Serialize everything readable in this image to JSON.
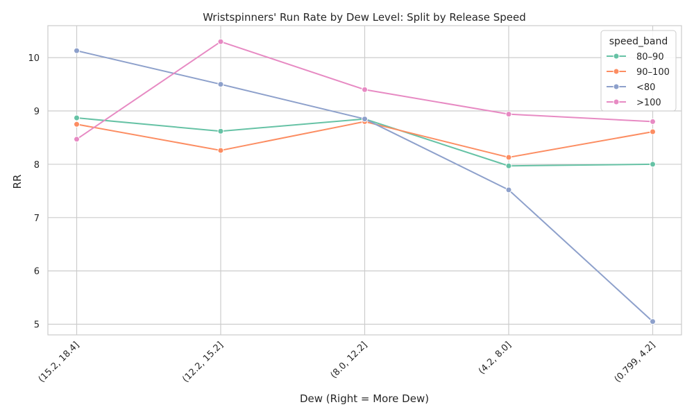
{
  "chart_data": {
    "type": "line",
    "title": "Wristspinners' Run Rate by Dew Level: Split by Release Speed",
    "xlabel": "Dew (Right = More Dew)",
    "ylabel": "RR",
    "categories": [
      "(15.2, 18.4]",
      "(12.2, 15.2]",
      "(8.0, 12.2]",
      "(4.2, 8.0]",
      "(0.799, 4.2]"
    ],
    "ylim": [
      4.8,
      10.6
    ],
    "yticks": [
      5,
      6,
      7,
      8,
      9,
      10
    ],
    "grid": true,
    "legend": {
      "title": "speed_band",
      "placement": "top-right"
    },
    "series": [
      {
        "name": "80–90",
        "color": "#66c2a5",
        "values": [
          8.87,
          8.62,
          8.85,
          7.97,
          8.0
        ]
      },
      {
        "name": "90–100",
        "color": "#fc8d62",
        "values": [
          8.75,
          8.26,
          8.8,
          8.13,
          8.61
        ]
      },
      {
        "name": "<80",
        "color": "#8da0cb",
        "values": [
          10.13,
          9.5,
          8.85,
          7.52,
          5.05
        ]
      },
      {
        "name": ">100",
        "color": "#e78ac3",
        "values": [
          8.47,
          10.3,
          9.4,
          8.94,
          8.8
        ]
      }
    ]
  }
}
